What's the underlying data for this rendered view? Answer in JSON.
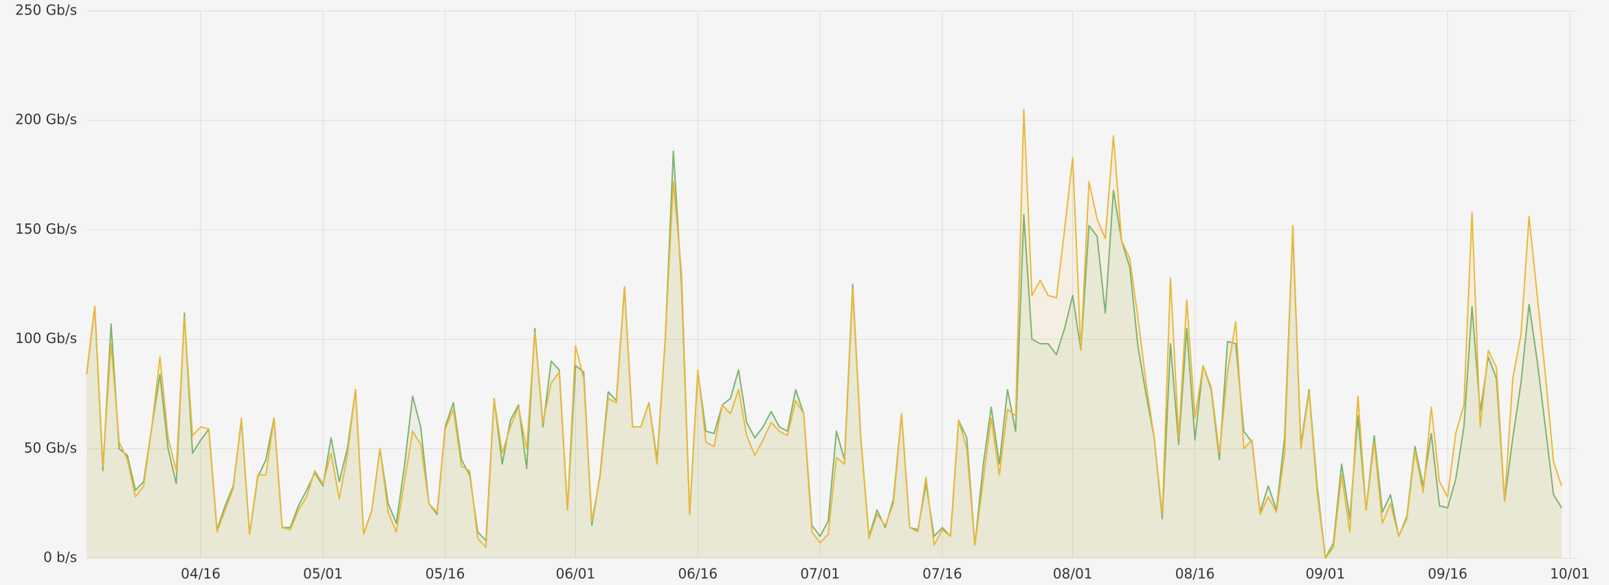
{
  "chart_data": {
    "type": "area",
    "ylim": [
      0,
      250
    ],
    "yticks": [
      {
        "value": 0,
        "label": "0 b/s"
      },
      {
        "value": 50,
        "label": "50 Gb/s"
      },
      {
        "value": 100,
        "label": "100 Gb/s"
      },
      {
        "value": 150,
        "label": "150 Gb/s"
      },
      {
        "value": 200,
        "label": "200 Gb/s"
      },
      {
        "value": 250,
        "label": "250 Gb/s"
      }
    ],
    "xlim": [
      "04/02",
      "10/01"
    ],
    "xticks": [
      "04/16",
      "05/01",
      "05/16",
      "06/01",
      "06/16",
      "07/01",
      "07/16",
      "08/01",
      "08/16",
      "09/01",
      "09/16",
      "10/01"
    ],
    "grid": true,
    "x": [
      "04/02",
      "04/03",
      "04/04",
      "04/05",
      "04/06",
      "04/07",
      "04/08",
      "04/09",
      "04/10",
      "04/11",
      "04/12",
      "04/13",
      "04/14",
      "04/15",
      "04/16",
      "04/17",
      "04/18",
      "04/19",
      "04/20",
      "04/21",
      "04/22",
      "04/23",
      "04/24",
      "04/25",
      "04/26",
      "04/27",
      "04/28",
      "04/29",
      "04/30",
      "05/01",
      "05/02",
      "05/03",
      "05/04",
      "05/05",
      "05/06",
      "05/07",
      "05/08",
      "05/09",
      "05/10",
      "05/11",
      "05/12",
      "05/13",
      "05/14",
      "05/15",
      "05/16",
      "05/17",
      "05/18",
      "05/19",
      "05/20",
      "05/21",
      "05/22",
      "05/23",
      "05/24",
      "05/25",
      "05/26",
      "05/27",
      "05/28",
      "05/29",
      "05/30",
      "05/31",
      "06/01",
      "06/02",
      "06/03",
      "06/04",
      "06/05",
      "06/06",
      "06/07",
      "06/08",
      "06/09",
      "06/10",
      "06/11",
      "06/12",
      "06/13",
      "06/14",
      "06/15",
      "06/16",
      "06/17",
      "06/18",
      "06/19",
      "06/20",
      "06/21",
      "06/22",
      "06/23",
      "06/24",
      "06/25",
      "06/26",
      "06/27",
      "06/28",
      "06/29",
      "06/30",
      "07/01",
      "07/02",
      "07/03",
      "07/04",
      "07/05",
      "07/06",
      "07/07",
      "07/08",
      "07/09",
      "07/10",
      "07/11",
      "07/12",
      "07/13",
      "07/14",
      "07/15",
      "07/16",
      "07/17",
      "07/18",
      "07/19",
      "07/20",
      "07/21",
      "07/22",
      "07/23",
      "07/24",
      "07/25",
      "07/26",
      "07/27",
      "07/28",
      "07/29",
      "07/30",
      "07/31",
      "08/01",
      "08/02",
      "08/03",
      "08/04",
      "08/05",
      "08/06",
      "08/07",
      "08/08",
      "08/09",
      "08/10",
      "08/11",
      "08/12",
      "08/13",
      "08/14",
      "08/15",
      "08/16",
      "08/17",
      "08/18",
      "08/19",
      "08/20",
      "08/21",
      "08/22",
      "08/23",
      "08/24",
      "08/25",
      "08/26",
      "08/27",
      "08/28",
      "08/29",
      "08/30",
      "08/31",
      "09/01",
      "09/02",
      "09/03",
      "09/04",
      "09/05",
      "09/06",
      "09/07",
      "09/08",
      "09/09",
      "09/10",
      "09/11",
      "09/12",
      "09/13",
      "09/14",
      "09/15",
      "09/16",
      "09/17",
      "09/18",
      "09/19",
      "09/20",
      "09/21",
      "09/22",
      "09/23",
      "09/24",
      "09/25",
      "09/26",
      "09/27",
      "09/28",
      "09/29",
      "09/30"
    ],
    "series": [
      {
        "color": "#7eb26d",
        "values": [
          84,
          115,
          40,
          107,
          50,
          47,
          31,
          35,
          60,
          84,
          50,
          34,
          112,
          48,
          54,
          59,
          13,
          24,
          33,
          63,
          11,
          37,
          45,
          64,
          14,
          14,
          24,
          31,
          39,
          33,
          55,
          35,
          50,
          77,
          11,
          22,
          50,
          25,
          16,
          42,
          74,
          60,
          25,
          20,
          60,
          71,
          45,
          38,
          12,
          8,
          73,
          43,
          63,
          70,
          41,
          105,
          60,
          90,
          86,
          22,
          88,
          85,
          15,
          38,
          76,
          72,
          124,
          60,
          60,
          71,
          45,
          100,
          186,
          125,
          20,
          85,
          58,
          57,
          70,
          73,
          86,
          62,
          55,
          60,
          67,
          60,
          58,
          77,
          66,
          15,
          10,
          17,
          58,
          45,
          125,
          55,
          10,
          22,
          14,
          27,
          66,
          14,
          13,
          34,
          10,
          14,
          10,
          63,
          55,
          6,
          42,
          69,
          43,
          77,
          58,
          157,
          100,
          98,
          98,
          93,
          105,
          120,
          95,
          152,
          147,
          112,
          168,
          145,
          133,
          97,
          75,
          55,
          18,
          98,
          52,
          105,
          54,
          88,
          77,
          45,
          99,
          98,
          58,
          53,
          21,
          33,
          22,
          55,
          150,
          52,
          77,
          33,
          0,
          7,
          43,
          18,
          65,
          22,
          56,
          21,
          29,
          10,
          19,
          51,
          33,
          57,
          24,
          23,
          36,
          60,
          115,
          67,
          92,
          82,
          26,
          55,
          80,
          116,
          90,
          60,
          29,
          23
        ]
      },
      {
        "color": "#eab839",
        "values": [
          84,
          115,
          42,
          98,
          53,
          45,
          28,
          33,
          60,
          92,
          55,
          40,
          110,
          56,
          60,
          59,
          12,
          22,
          32,
          64,
          11,
          38,
          38,
          64,
          14,
          13,
          22,
          28,
          40,
          34,
          48,
          27,
          47,
          77,
          11,
          22,
          50,
          21,
          12,
          35,
          58,
          52,
          25,
          21,
          59,
          68,
          42,
          40,
          9,
          5,
          73,
          48,
          60,
          69,
          50,
          103,
          62,
          80,
          85,
          22,
          97,
          82,
          17,
          37,
          73,
          71,
          124,
          60,
          60,
          71,
          43,
          100,
          172,
          130,
          20,
          86,
          53,
          51,
          70,
          66,
          77,
          56,
          47,
          54,
          62,
          58,
          56,
          72,
          66,
          12,
          7,
          11,
          46,
          43,
          123,
          55,
          9,
          20,
          15,
          25,
          66,
          14,
          12,
          37,
          6,
          13,
          10,
          63,
          50,
          6,
          35,
          64,
          38,
          68,
          65,
          205,
          120,
          127,
          120,
          119,
          150,
          183,
          95,
          172,
          155,
          146,
          193,
          145,
          137,
          110,
          80,
          55,
          20,
          128,
          55,
          118,
          64,
          88,
          78,
          48,
          85,
          108,
          50,
          54,
          20,
          28,
          21,
          48,
          152,
          50,
          76,
          30,
          0,
          5,
          38,
          12,
          74,
          22,
          53,
          16,
          25,
          10,
          18,
          49,
          30,
          69,
          35,
          28,
          57,
          70,
          158,
          60,
          95,
          87,
          26,
          82,
          102,
          156,
          120,
          84,
          44,
          33
        ]
      }
    ]
  }
}
